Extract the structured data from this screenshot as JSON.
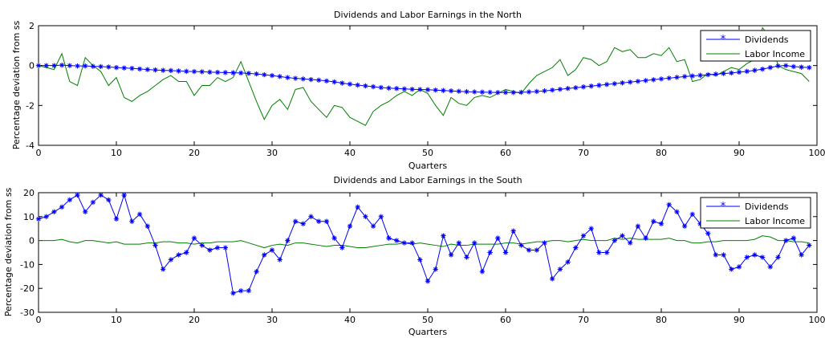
{
  "chart_data": [
    {
      "type": "line",
      "title": "Dividends and Labor Earnings in the North",
      "xlabel": "Quarters",
      "ylabel": "Percentage deviation from ss",
      "xlim": [
        0,
        100
      ],
      "ylim": [
        -4,
        2
      ],
      "xticks": [
        0,
        10,
        20,
        30,
        40,
        50,
        60,
        70,
        80,
        90,
        100
      ],
      "yticks": [
        -4,
        -2,
        0,
        2
      ],
      "grid": false,
      "legend": "top-right",
      "series": [
        {
          "name": "Dividends",
          "color": "#0000ff",
          "marker": "star",
          "values": [
            0.0,
            0.0,
            0.0,
            0.02,
            0.0,
            -0.02,
            -0.02,
            -0.04,
            -0.05,
            -0.07,
            -0.1,
            -0.12,
            -0.14,
            -0.17,
            -0.2,
            -0.22,
            -0.24,
            -0.25,
            -0.27,
            -0.29,
            -0.3,
            -0.31,
            -0.33,
            -0.34,
            -0.35,
            -0.36,
            -0.37,
            -0.39,
            -0.42,
            -0.46,
            -0.5,
            -0.55,
            -0.6,
            -0.64,
            -0.67,
            -0.7,
            -0.73,
            -0.77,
            -0.82,
            -0.88,
            -0.93,
            -0.98,
            -1.02,
            -1.06,
            -1.1,
            -1.13,
            -1.15,
            -1.17,
            -1.19,
            -1.2,
            -1.21,
            -1.23,
            -1.25,
            -1.27,
            -1.29,
            -1.31,
            -1.32,
            -1.33,
            -1.34,
            -1.35,
            -1.35,
            -1.35,
            -1.34,
            -1.32,
            -1.3,
            -1.27,
            -1.23,
            -1.19,
            -1.15,
            -1.11,
            -1.07,
            -1.03,
            -0.99,
            -0.95,
            -0.91,
            -0.87,
            -0.83,
            -0.79,
            -0.75,
            -0.71,
            -0.67,
            -0.63,
            -0.59,
            -0.55,
            -0.52,
            -0.49,
            -0.46,
            -0.43,
            -0.4,
            -0.37,
            -0.33,
            -0.29,
            -0.24,
            -0.18,
            -0.1,
            -0.02,
            0.0,
            -0.05,
            -0.08,
            -0.1
          ]
        },
        {
          "name": "Labor Income",
          "color": "#008000",
          "marker": "none",
          "values": [
            0.0,
            -0.1,
            -0.2,
            0.6,
            -0.8,
            -1.0,
            0.4,
            0.0,
            -0.3,
            -1.0,
            -0.6,
            -1.6,
            -1.8,
            -1.5,
            -1.3,
            -1.0,
            -0.7,
            -0.5,
            -0.8,
            -0.8,
            -1.5,
            -1.0,
            -1.0,
            -0.6,
            -0.8,
            -0.6,
            0.2,
            -0.8,
            -1.8,
            -2.7,
            -2.0,
            -1.7,
            -2.2,
            -1.2,
            -1.1,
            -1.8,
            -2.2,
            -2.6,
            -2.0,
            -2.1,
            -2.6,
            -2.8,
            -3.0,
            -2.3,
            -2.0,
            -1.8,
            -1.5,
            -1.3,
            -1.5,
            -1.2,
            -1.4,
            -2.0,
            -2.5,
            -1.6,
            -1.9,
            -2.0,
            -1.6,
            -1.5,
            -1.6,
            -1.4,
            -1.2,
            -1.3,
            -1.4,
            -0.9,
            -0.5,
            -0.3,
            -0.1,
            0.3,
            -0.5,
            -0.2,
            0.4,
            0.3,
            0.0,
            0.2,
            0.9,
            0.7,
            0.8,
            0.4,
            0.4,
            0.6,
            0.5,
            0.9,
            0.2,
            0.3,
            -0.8,
            -0.7,
            -0.4,
            -0.5,
            -0.3,
            -0.1,
            -0.2,
            0.1,
            0.3,
            1.9,
            1.4,
            0.0,
            -0.2,
            -0.3,
            -0.4,
            -0.8
          ]
        }
      ]
    },
    {
      "type": "line",
      "title": "Dividends and Labor Earnings in the South",
      "xlabel": "Quarters",
      "ylabel": "Percentage deviation from ss",
      "xlim": [
        0,
        100
      ],
      "ylim": [
        -30,
        20
      ],
      "xticks": [
        0,
        10,
        20,
        30,
        40,
        50,
        60,
        70,
        80,
        90,
        100
      ],
      "yticks": [
        -30,
        -20,
        -10,
        0,
        10,
        20
      ],
      "grid": false,
      "legend": "top-right",
      "series": [
        {
          "name": "Dividends",
          "color": "#0000ff",
          "marker": "star",
          "values": [
            9,
            10,
            12,
            14,
            17,
            19,
            12,
            16,
            19,
            17,
            9,
            19,
            8,
            11,
            6,
            -2,
            -12,
            -8,
            -6,
            -5,
            1,
            -2,
            -4,
            -3,
            -3,
            -22,
            -21,
            -21,
            -13,
            -6,
            -4,
            -8,
            0,
            8,
            7,
            10,
            8,
            8,
            1,
            -3,
            6,
            14,
            10,
            6,
            10,
            1,
            0,
            -1,
            -1,
            -8,
            -17,
            -12,
            2,
            -6,
            -1,
            -7,
            -1,
            -13,
            -5,
            1,
            -5,
            4,
            -2,
            -4,
            -4,
            -1,
            -16,
            -12,
            -9,
            -3,
            2,
            5,
            -5,
            -5,
            0,
            2,
            -1,
            6,
            1,
            8,
            7,
            15,
            12,
            6,
            11,
            7,
            3,
            -6,
            -6,
            -12,
            -11,
            -7,
            -6,
            -7,
            -11,
            -7,
            0,
            1,
            -6,
            -2
          ]
        },
        {
          "name": "Labor Income",
          "color": "#008000",
          "marker": "none",
          "values": [
            0,
            0,
            0,
            0.5,
            -0.5,
            -1,
            0,
            0,
            -0.5,
            -1,
            -0.5,
            -1.5,
            -1.5,
            -1.5,
            -1,
            -1,
            -0.5,
            -0.5,
            -1,
            -1,
            -1.5,
            -1,
            -1,
            -0.5,
            -0.5,
            -0.5,
            0,
            -1,
            -2,
            -3,
            -2,
            -1.5,
            -2,
            -1,
            -1,
            -1.5,
            -2,
            -2.5,
            -2,
            -2,
            -2.5,
            -3,
            -3,
            -2.5,
            -2,
            -1.5,
            -1.5,
            -1,
            -1.5,
            -1,
            -1.5,
            -2,
            -2.5,
            -1.5,
            -2,
            -2,
            -1.5,
            -1.5,
            -1.5,
            -1.5,
            -1,
            -1,
            -1.5,
            -1,
            -0.5,
            -0.5,
            0,
            0,
            -0.5,
            0,
            0.5,
            0,
            0,
            0,
            1,
            0.5,
            1,
            0.5,
            0.5,
            0.5,
            0.5,
            1,
            0,
            0,
            -1,
            -1,
            -0.5,
            -0.5,
            0,
            0,
            0,
            0,
            0.5,
            2,
            1.5,
            0,
            0,
            -0.5,
            -0.5,
            -1
          ]
        }
      ]
    }
  ]
}
